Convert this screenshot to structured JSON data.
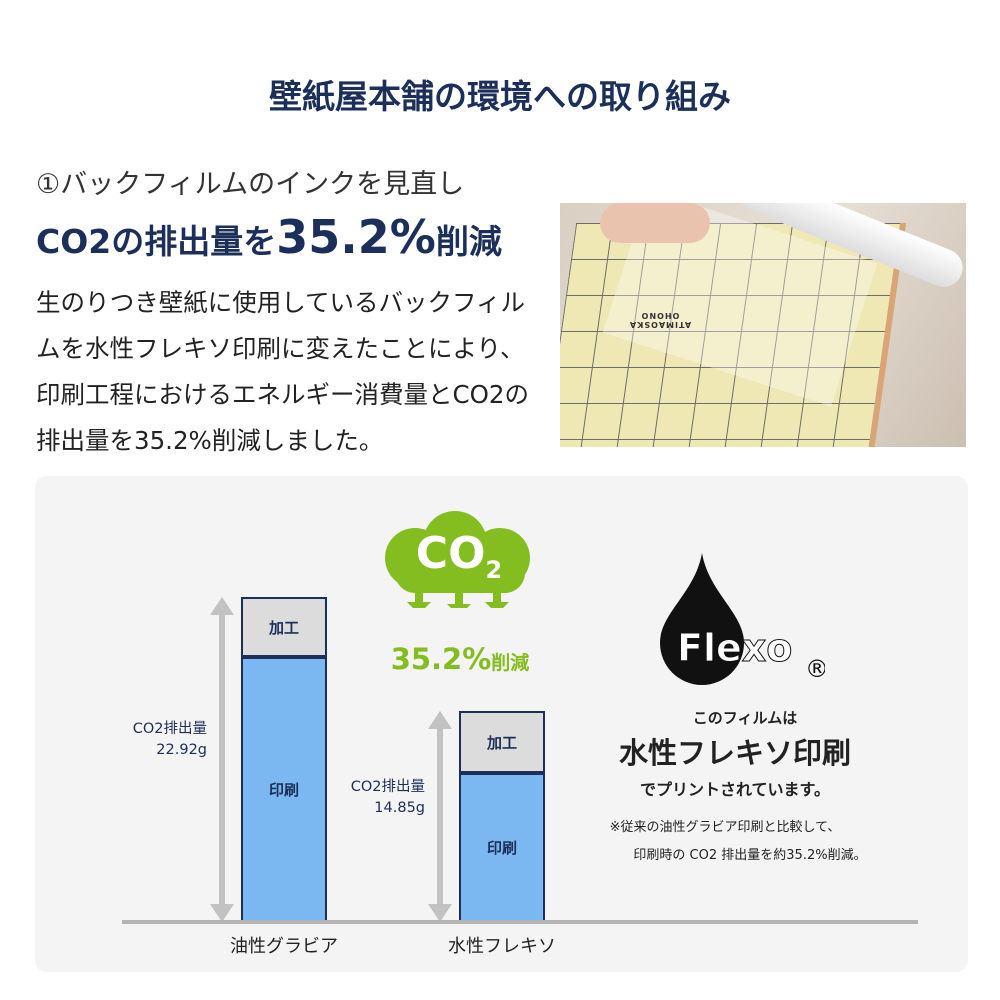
{
  "title": "壁紙屋本舗の環境への取り組み",
  "section": {
    "subtitle": "①バックフィルムのインクを見直し",
    "headline_pre": "CO2の排出量を",
    "headline_value": "35.2%",
    "headline_post": "削減",
    "body": "生のりつき壁紙に使用しているバックフィルムを水性フレキソ印刷に変えたことにより、印刷工程におけるエネルギー消費量とCO2の排出量を35.2%削減しました。"
  },
  "photo": {
    "alt_visible_text": "ATIMAOSKA OHONO"
  },
  "badge": {
    "cloud_text": "CO",
    "cloud_sub": "2",
    "reduction_value": "35.2%",
    "reduction_label": "削減",
    "color": "#84bd1f"
  },
  "flexo": {
    "logo_text": "Flexo",
    "registered": "®",
    "line1": "このフィルムは",
    "line2": "水性フレキソ印刷",
    "line3": "でプリントされています。",
    "note1": "※従来の油性グラビア印刷と比較して、",
    "note2": "印刷時の CO2 排出量を約35.2%削減。"
  },
  "chart_data": {
    "type": "bar",
    "stacked": true,
    "categories": [
      "油性グラビア",
      "水性フレキソ"
    ],
    "series": [
      {
        "name": "印刷",
        "values": [
          18.7,
          10.5
        ],
        "color": "#7bb8f1"
      },
      {
        "name": "加工",
        "values": [
          4.2,
          4.35
        ],
        "color": "#dcdcdc"
      }
    ],
    "totals": [
      {
        "label": "CO2排出量",
        "value": "22.92g"
      },
      {
        "label": "CO2排出量",
        "value": "14.85g"
      }
    ],
    "totals_numeric": [
      22.92,
      14.85
    ]
  }
}
